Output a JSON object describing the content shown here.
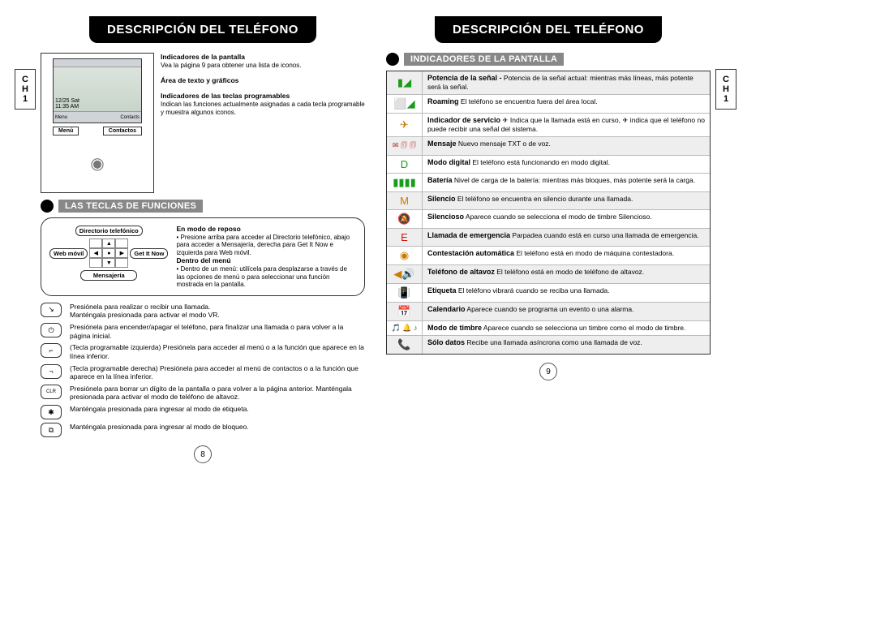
{
  "page_left": {
    "tab": {
      "line1": "C",
      "line2": "H",
      "num": "1"
    },
    "header": "DESCRIPCIÓN DEL TELÉFONO",
    "screen": {
      "datetime": "12/25 Sat\n11:35 AM",
      "soft_left": "Menú",
      "soft_right": "Contactos",
      "bottom_left": "Menu",
      "bottom_right": "Contacts"
    },
    "callouts": [
      {
        "title": "Indicadores de la pantalla",
        "text": "Vea la página 9 para obtener una lista de iconos."
      },
      {
        "title": "Área de texto y gráficos",
        "text": ""
      },
      {
        "title": "Indicadores de las teclas programables",
        "text": "Indican las funciones actualmente asignadas a cada tecla programable y muestra algunos iconos."
      }
    ],
    "section_func": "LAS TECLAS DE FUNCIONES",
    "dpad_labels": {
      "up": "Directorio telefónico",
      "left": "Web móvil",
      "right": "Get It Now",
      "down": "Mensajería"
    },
    "func_text": {
      "idle_title": "En modo de reposo",
      "idle_text": "• Presione arriba para acceder al Directorio telefónico, abajo para acceder a Mensajería, derecha para Get It Now e izquierda para Web móvil.",
      "menu_title": "Dentro del menú",
      "menu_text": "• Dentro de un menú: utilícela para desplazarse a través de las opciones de menú o para seleccionar una función mostrada en la pantalla."
    },
    "keys": [
      {
        "glyph": "↘",
        "text": "Presiónela para realizar o recibir una llamada.\nManténgala presionada para activar el modo VR."
      },
      {
        "glyph": "⏻",
        "text": "Presiónela para encender/apagar el teléfono, para finalizar una llamada o para volver a la página inicial."
      },
      {
        "glyph": "⌐",
        "text": "(Tecla programable izquierda) Presiónela para acceder al menú o a la función que aparece en la línea inferior."
      },
      {
        "glyph": "¬",
        "text": "(Tecla programable derecha) Presiónela para acceder al menú de contactos o a la función que aparece en la línea inferior."
      },
      {
        "glyph": "CLR",
        "text": "Presiónela para borrar un dígito de la pantalla o para volver a la página anterior. Manténgala presionada para activar el modo de teléfono de altavoz."
      },
      {
        "glyph": "✱",
        "text": "Manténgala presionada para ingresar al modo de etiqueta."
      },
      {
        "glyph": "⧉",
        "text": "Manténgala presionada para ingresar al modo de bloqueo."
      }
    ],
    "pagenum": "8"
  },
  "page_right": {
    "tab": {
      "line1": "C",
      "line2": "H",
      "num": "1"
    },
    "header": "DESCRIPCIÓN DEL TELÉFONO",
    "section_ind": "INDICADORES DE LA PANTALLA",
    "indicators": [
      {
        "glyph": "▮◢",
        "color": "#1a9c1a",
        "title": "Potencia de la señal -",
        "text": "Potencia de la señal actual: mientras más líneas, más potente será la señal.",
        "shade": true
      },
      {
        "glyph": "⬜◢",
        "color": "#1a9c1a",
        "title": "Roaming",
        "text": "El teléfono se encuentra fuera del área local."
      },
      {
        "glyph": "✈",
        "color": "#cc7a00",
        "title": "Indicador de servicio",
        "text": "✈ Indica que la llamada está en curso, ✈ indica que el teléfono no puede recibir una señal del sistema."
      },
      {
        "glyph": "✉ 🗊 🗊",
        "color": "#b02020",
        "title": "Mensaje",
        "text": "Nuevo mensaje TXT o de voz.",
        "shade": true,
        "dual": true
      },
      {
        "glyph": "D",
        "color": "#1a9c1a",
        "title": "Modo digital",
        "text": "El teléfono está funcionando en modo digital."
      },
      {
        "glyph": "▮▮▮▮",
        "color": "#1a9c1a",
        "title": "Batería",
        "text": "Nivel de carga de la batería: mientras más bloques, más potente será la carga."
      },
      {
        "glyph": "M",
        "color": "#cc7a00",
        "title": "Silencio",
        "text": "El teléfono se encuentra en silencio durante una llamada.",
        "shade": true
      },
      {
        "glyph": "🔕",
        "color": "#444",
        "title": "Silencioso",
        "text": "Aparece cuando se selecciona el modo de timbre Silencioso."
      },
      {
        "glyph": "E",
        "color": "#d01010",
        "title": "Llamada de emergencia",
        "text": "Parpadea cuando está en curso una llamada de emergencia.",
        "shade": true
      },
      {
        "glyph": "◉",
        "color": "#cc7a00",
        "title": "Contestación automática",
        "text": "El teléfono está en modo de máquina contestadora."
      },
      {
        "glyph": "◀🔊",
        "color": "#cc7a00",
        "title": "Teléfono de altavoz",
        "text": "El teléfono está en modo de teléfono de altavoz.",
        "shade": true
      },
      {
        "glyph": "📳",
        "color": "#555",
        "title": "Etiqueta",
        "text": "El teléfono vibrará cuando se reciba una llamada."
      },
      {
        "glyph": "📅",
        "color": "#1a9c1a",
        "title": "Calendario",
        "text": "Aparece cuando se programa un evento o una alarma.",
        "shade": true
      },
      {
        "glyph": "🎵 🔔 ♪",
        "color": "#444",
        "title": "Modo de timbre",
        "text": "Aparece cuando se selecciona un timbre como el modo de timbre.",
        "dual": true
      },
      {
        "glyph": "📞",
        "color": "#d01010",
        "title": "Sólo datos",
        "text": "Recibe una llamada asíncrona como una llamada de voz.",
        "shade": true
      }
    ],
    "pagenum": "9"
  }
}
